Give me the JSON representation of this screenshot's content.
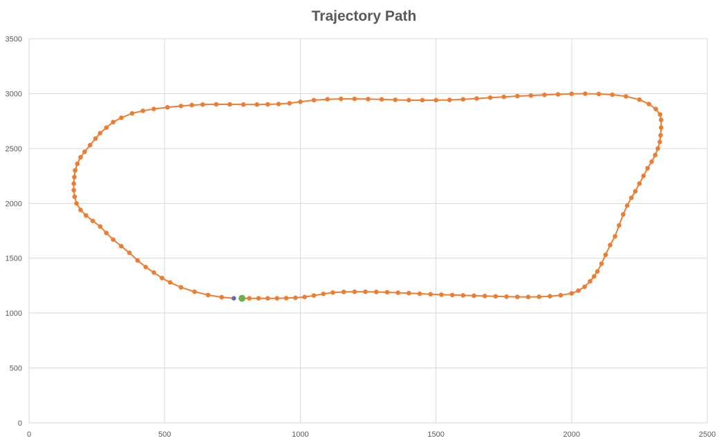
{
  "chart_data": {
    "type": "scatter",
    "title": "Trajectory Path",
    "xlabel": "",
    "ylabel": "",
    "xlim": [
      0,
      2500
    ],
    "ylim": [
      0,
      3500
    ],
    "x_ticks": [
      0,
      500,
      1000,
      1500,
      2000,
      2500
    ],
    "y_ticks": [
      0,
      500,
      1000,
      1500,
      2000,
      2500,
      3000,
      3500
    ],
    "grid": true,
    "legend": "none",
    "colors": {
      "path": "#ED7D31",
      "start_marker": "#70AD47",
      "end_marker": "#4472C4",
      "grid": "#D9D9D9",
      "text": "#595959"
    },
    "series": [
      {
        "style": "line-with-markers",
        "color": "#ED7D31",
        "points": [
          [
            785,
            1135
          ],
          [
            812,
            1135
          ],
          [
            846,
            1135
          ],
          [
            880,
            1135
          ],
          [
            914,
            1135
          ],
          [
            948,
            1137
          ],
          [
            982,
            1140
          ],
          [
            1016,
            1147
          ],
          [
            1050,
            1160
          ],
          [
            1085,
            1175
          ],
          [
            1120,
            1187
          ],
          [
            1160,
            1193
          ],
          [
            1200,
            1195
          ],
          [
            1240,
            1195
          ],
          [
            1280,
            1193
          ],
          [
            1320,
            1190
          ],
          [
            1360,
            1186
          ],
          [
            1400,
            1182
          ],
          [
            1440,
            1177
          ],
          [
            1480,
            1172
          ],
          [
            1520,
            1168
          ],
          [
            1560,
            1165
          ],
          [
            1600,
            1162
          ],
          [
            1640,
            1159
          ],
          [
            1680,
            1156
          ],
          [
            1720,
            1153
          ],
          [
            1760,
            1150
          ],
          [
            1800,
            1148
          ],
          [
            1840,
            1147
          ],
          [
            1880,
            1149
          ],
          [
            1920,
            1154
          ],
          [
            1960,
            1163
          ],
          [
            2000,
            1180
          ],
          [
            2025,
            1205
          ],
          [
            2048,
            1240
          ],
          [
            2068,
            1290
          ],
          [
            2083,
            1335
          ],
          [
            2095,
            1380
          ],
          [
            2110,
            1450
          ],
          [
            2125,
            1530
          ],
          [
            2142,
            1620
          ],
          [
            2160,
            1700
          ],
          [
            2175,
            1800
          ],
          [
            2190,
            1900
          ],
          [
            2205,
            1980
          ],
          [
            2220,
            2050
          ],
          [
            2235,
            2110
          ],
          [
            2250,
            2180
          ],
          [
            2265,
            2250
          ],
          [
            2280,
            2320
          ],
          [
            2295,
            2380
          ],
          [
            2308,
            2440
          ],
          [
            2318,
            2500
          ],
          [
            2325,
            2560
          ],
          [
            2328,
            2620
          ],
          [
            2330,
            2690
          ],
          [
            2330,
            2760
          ],
          [
            2326,
            2810
          ],
          [
            2310,
            2860
          ],
          [
            2285,
            2905
          ],
          [
            2250,
            2945
          ],
          [
            2200,
            2975
          ],
          [
            2150,
            2990
          ],
          [
            2100,
            2997
          ],
          [
            2050,
            2999
          ],
          [
            2000,
            2998
          ],
          [
            1950,
            2993
          ],
          [
            1900,
            2988
          ],
          [
            1850,
            2982
          ],
          [
            1800,
            2977
          ],
          [
            1750,
            2970
          ],
          [
            1700,
            2963
          ],
          [
            1650,
            2955
          ],
          [
            1600,
            2948
          ],
          [
            1550,
            2942
          ],
          [
            1500,
            2940
          ],
          [
            1450,
            2940
          ],
          [
            1400,
            2940
          ],
          [
            1350,
            2943
          ],
          [
            1300,
            2947
          ],
          [
            1250,
            2950
          ],
          [
            1200,
            2952
          ],
          [
            1150,
            2952
          ],
          [
            1100,
            2948
          ],
          [
            1050,
            2940
          ],
          [
            1000,
            2925
          ],
          [
            960,
            2912
          ],
          [
            920,
            2905
          ],
          [
            880,
            2902
          ],
          [
            840,
            2900
          ],
          [
            790,
            2900
          ],
          [
            740,
            2902
          ],
          [
            690,
            2902
          ],
          [
            640,
            2900
          ],
          [
            600,
            2895
          ],
          [
            560,
            2887
          ],
          [
            510,
            2875
          ],
          [
            460,
            2860
          ],
          [
            420,
            2843
          ],
          [
            380,
            2820
          ],
          [
            340,
            2780
          ],
          [
            310,
            2740
          ],
          [
            285,
            2690
          ],
          [
            262,
            2640
          ],
          [
            245,
            2590
          ],
          [
            225,
            2530
          ],
          [
            205,
            2470
          ],
          [
            190,
            2420
          ],
          [
            178,
            2360
          ],
          [
            170,
            2300
          ],
          [
            167,
            2240
          ],
          [
            165,
            2180
          ],
          [
            165,
            2120
          ],
          [
            168,
            2060
          ],
          [
            175,
            2000
          ],
          [
            190,
            1940
          ],
          [
            210,
            1890
          ],
          [
            235,
            1840
          ],
          [
            262,
            1790
          ],
          [
            285,
            1730
          ],
          [
            310,
            1670
          ],
          [
            340,
            1610
          ],
          [
            370,
            1550
          ],
          [
            400,
            1480
          ],
          [
            430,
            1420
          ],
          [
            460,
            1370
          ],
          [
            490,
            1320
          ],
          [
            520,
            1280
          ],
          [
            560,
            1235
          ],
          [
            610,
            1195
          ],
          [
            660,
            1165
          ],
          [
            710,
            1145
          ],
          [
            755,
            1135
          ]
        ]
      }
    ],
    "markers": [
      {
        "label": "start",
        "x": 785,
        "y": 1135,
        "color": "#70AD47"
      },
      {
        "label": "end",
        "x": 755,
        "y": 1135,
        "color": "#4472C4"
      }
    ]
  }
}
